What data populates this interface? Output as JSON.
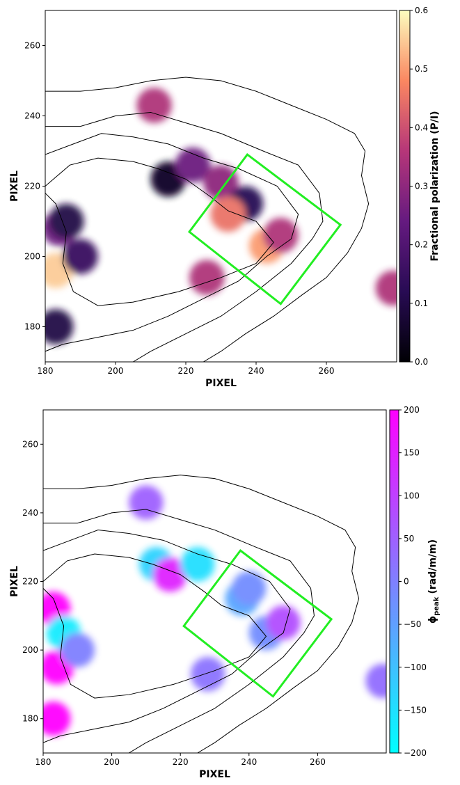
{
  "chart_data": [
    {
      "type": "image",
      "xlabel": "PIXEL",
      "ylabel": "PIXEL",
      "xlim": [
        180,
        280
      ],
      "ylim": [
        170,
        270
      ],
      "xticks": [
        180,
        200,
        220,
        240,
        260
      ],
      "yticks": [
        180,
        200,
        220,
        240,
        260
      ],
      "colormap": "magma",
      "colorbar": {
        "label": "Fractional polarization (P/I)",
        "lim": [
          0,
          0.6
        ],
        "ticks": [
          {
            "value": 0,
            "label": "0.0"
          },
          0.1,
          0.2,
          0.3,
          0.4,
          0.5,
          0.6
        ]
      },
      "x": [
        211,
        215,
        222,
        230,
        237,
        232,
        243,
        247,
        226,
        184,
        186,
        183,
        190,
        183,
        279
      ],
      "y": [
        243,
        222,
        226,
        221,
        215,
        212,
        203,
        206,
        194,
        208,
        210,
        196,
        200,
        180,
        191
      ],
      "values": [
        0.35,
        0.05,
        0.25,
        0.3,
        0.12,
        0.45,
        0.5,
        0.35,
        0.35,
        0.25,
        0.1,
        0.55,
        0.15,
        0.1,
        0.35
      ],
      "region": {
        "x": [
          237.5,
          264,
          247,
          221
        ],
        "y": [
          229,
          209,
          186.5,
          207
        ],
        "color": "#22ee22"
      }
    },
    {
      "type": "image",
      "xlabel": "PIXEL",
      "ylabel": "PIXEL",
      "xlim": [
        180,
        280
      ],
      "ylim": [
        170,
        270
      ],
      "xticks": [
        180,
        200,
        220,
        240,
        260
      ],
      "yticks": [
        180,
        200,
        220,
        240,
        260
      ],
      "colormap": "cool",
      "colorbar": {
        "label": {
          "symbol": "ϕ",
          "subscript": "peak",
          "unit": "(rad/m/m)"
        },
        "lim": [
          -200,
          200
        ],
        "ticks": [
          {
            "value": -200,
            "label": "−200"
          },
          {
            "value": -150,
            "label": "−150"
          },
          {
            "value": -100,
            "label": "−100"
          },
          {
            "value": -50,
            "label": "−50"
          },
          0,
          50,
          100,
          150,
          200
        ]
      },
      "x": [
        210,
        213,
        217,
        225,
        238,
        245,
        240,
        250,
        228,
        183,
        186,
        184,
        190,
        183,
        279
      ],
      "y": [
        243,
        225,
        222,
        225,
        215,
        205,
        218,
        208,
        193,
        212,
        205,
        195,
        200,
        180,
        191
      ],
      "values": [
        50,
        -130,
        150,
        -150,
        -60,
        -20,
        -20,
        80,
        20,
        200,
        -170,
        200,
        0,
        200,
        30
      ],
      "region": {
        "x": [
          237.5,
          264,
          247,
          221
        ],
        "y": [
          229,
          209,
          186.5,
          207
        ],
        "color": "#22ee22"
      }
    }
  ]
}
